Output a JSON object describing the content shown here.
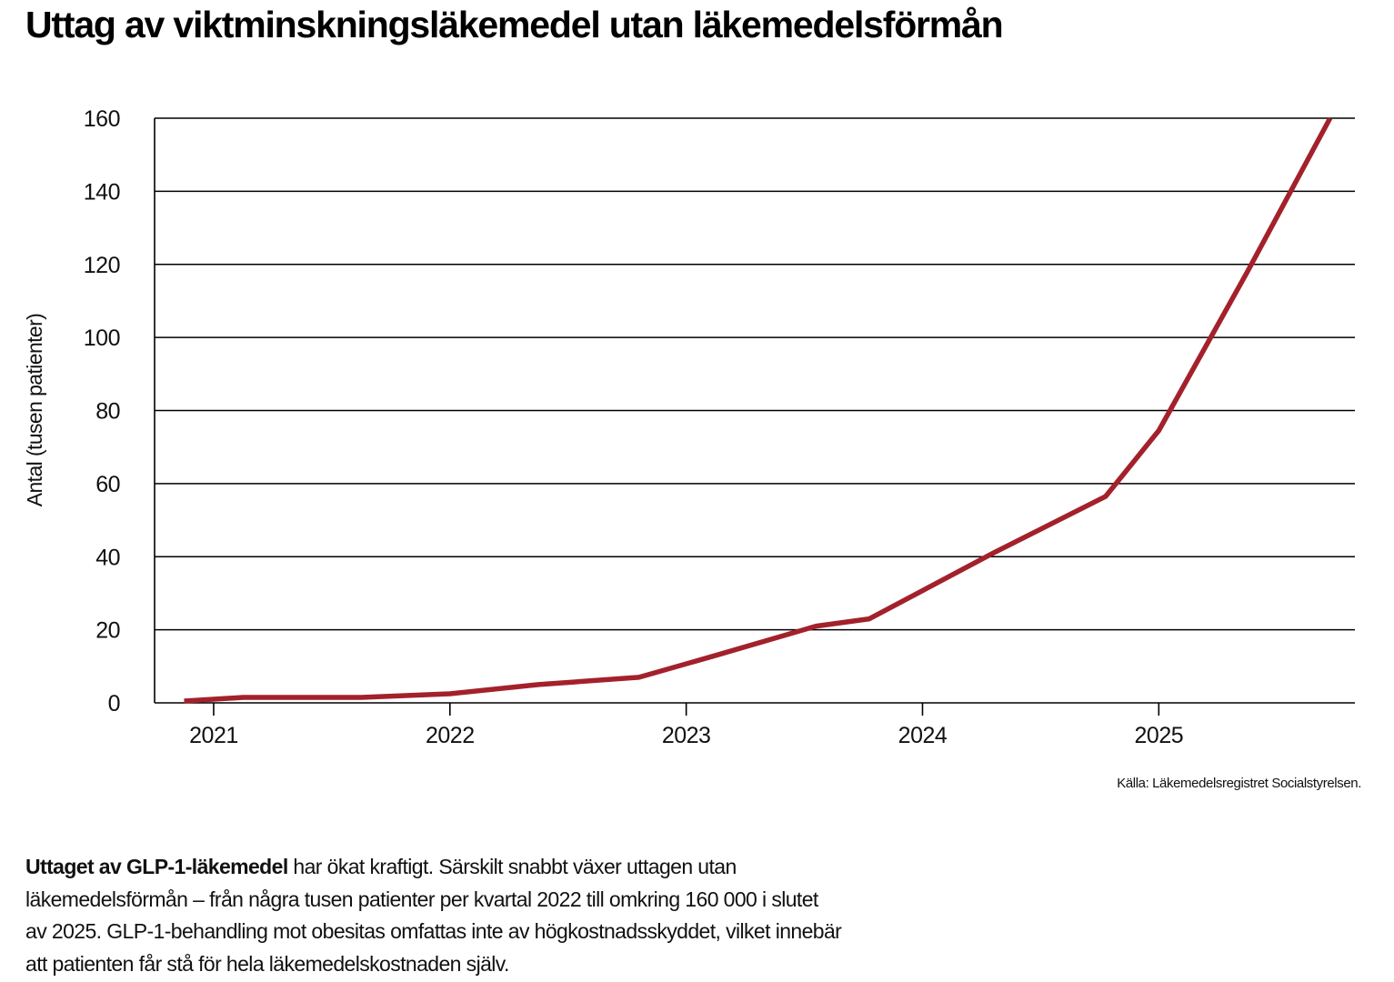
{
  "title": "Uttag av viktminskningsläkemedel utan läkemedelsförmån",
  "source": "Källa: Läkemedelsregistret Socialstyrelsen.",
  "caption": {
    "lead": "Uttaget av GLP-1-läkemedel",
    "body": " har ökat kraftigt. Särskilt snabbt växer uttagen utan läkemedelsförmån – från några tusen patienter per kvartal 2022 till omkring 160 000 i slutet av 2025. GLP-1-behandling mot obesitas omfattas inte av högkostnadsskyddet, vilket innebär att patienten får stå för hela läkemedelskostnaden själv."
  },
  "colors": {
    "line": "#a3212b",
    "grid": "#000000"
  },
  "chart_data": {
    "type": "line",
    "ylabel": "Antal (tusen patienter)",
    "xlabel": "",
    "ylim": [
      0,
      160
    ],
    "yticks": [
      0,
      20,
      40,
      60,
      80,
      100,
      120,
      140,
      160
    ],
    "xlim": [
      2020.75,
      2025.83
    ],
    "xticks": [
      2021,
      2022,
      2023,
      2024,
      2025
    ],
    "grid": true,
    "series": [
      {
        "values": [
          [
            2020.875,
            0.5
          ],
          [
            2021.125,
            1.5
          ],
          [
            2021.625,
            1.5
          ],
          [
            2022.0,
            2.5
          ],
          [
            2022.375,
            5.0
          ],
          [
            2022.8,
            7.0
          ],
          [
            2023.125,
            13.0
          ],
          [
            2023.55,
            21.0
          ],
          [
            2023.775,
            23.0
          ],
          [
            2024.3,
            41.0
          ],
          [
            2024.775,
            56.5
          ],
          [
            2025.0,
            74.5
          ],
          [
            2025.375,
            118.0
          ],
          [
            2025.725,
            160.0
          ]
        ]
      }
    ]
  }
}
